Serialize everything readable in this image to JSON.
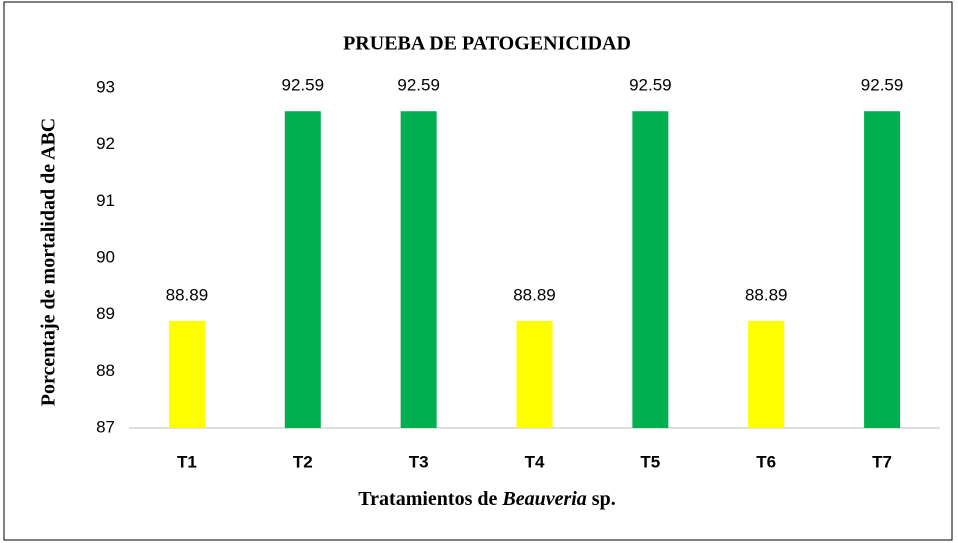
{
  "chart_data": {
    "type": "bar",
    "title": "PRUEBA DE PATOGENICIDAD",
    "ylabel": "Porcentaje de mortalidad de ABC",
    "xlabel": [
      "Tratamientos de ",
      "Beauveria",
      " sp."
    ],
    "categories": [
      "T1",
      "T2",
      "T3",
      "T4",
      "T5",
      "T6",
      "T7"
    ],
    "values": [
      88.89,
      92.59,
      92.59,
      88.89,
      92.59,
      88.89,
      92.59
    ],
    "colors": [
      "#ffff00",
      "#00b050",
      "#00b050",
      "#ffff00",
      "#00b050",
      "#ffff00",
      "#00b050"
    ],
    "ylim": [
      87,
      93
    ],
    "yticks": [
      87,
      88,
      89,
      90,
      91,
      92,
      93
    ],
    "grid": false
  }
}
